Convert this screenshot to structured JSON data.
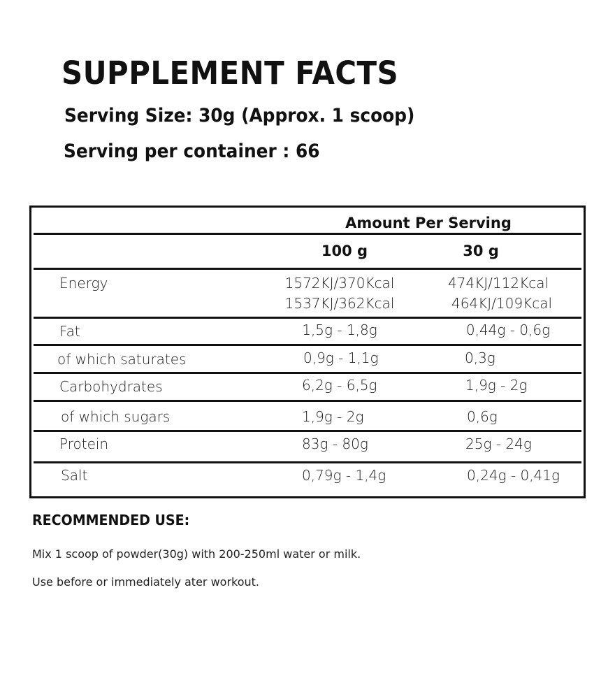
{
  "title": "SUPPLEMENT FACTS",
  "serving_size": "Serving Size: 30g (Approx. 1 scoop)",
  "servings_per_container": "Serving per container : 66",
  "table": {
    "header": "Amount Per Serving",
    "columns": [
      "100 g",
      "30 g"
    ],
    "rows": [
      {
        "label": "Energy",
        "v100": "1572KJ/370Kcal",
        "v30": "474KJ/112Kcal",
        "v100b": "1537KJ/362Kcal",
        "v30b": "464KJ/109Kcal"
      },
      {
        "label": "Fat",
        "v100": "1,5g - 1,8g",
        "v30": "0,44g - 0,6g"
      },
      {
        "label": "of which saturates",
        "v100": "0,9g - 1,1g",
        "v30": "0,3g"
      },
      {
        "label": "Carbohydrates",
        "v100": "6,2g - 6,5g",
        "v30": "1,9g - 2g"
      },
      {
        "label": "of which sugars",
        "v100": "1,9g - 2g",
        "v30": "0,6g"
      },
      {
        "label": "Protein",
        "v100": "83g - 80g",
        "v30": "25g - 24g"
      },
      {
        "label": "Salt",
        "v100": "0,79g - 1,4g",
        "v30": "0,24g - 0,41g"
      }
    ]
  },
  "recommended": {
    "heading": "RECOMMENDED USE:",
    "lines": [
      "Mix 1 scoop of powder(30g) with 200-250ml water or milk.",
      "Use before or immediately ater workout."
    ]
  }
}
